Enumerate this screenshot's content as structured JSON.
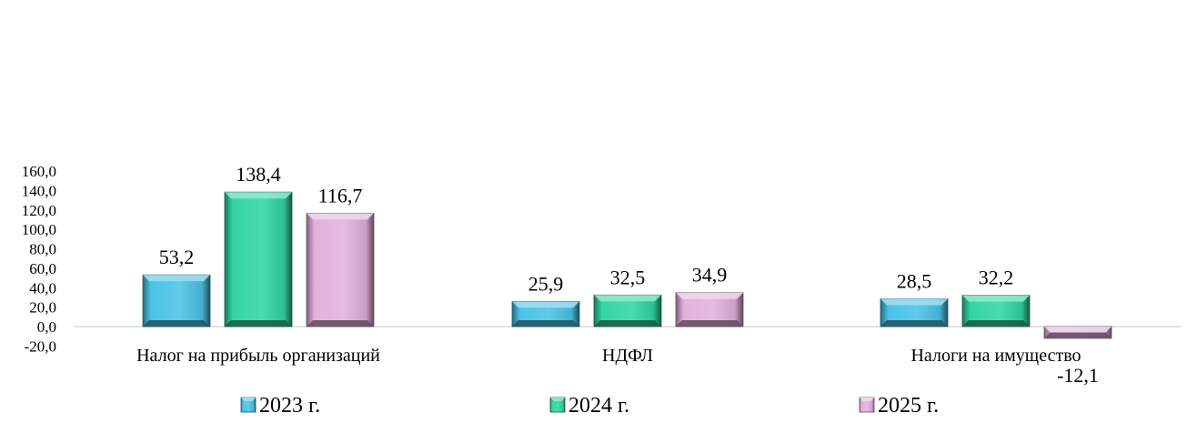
{
  "chart_data": {
    "type": "bar",
    "categories": [
      "Налог на прибыль организаций",
      "НДФЛ",
      "Налоги на имущество"
    ],
    "series": [
      {
        "name": "2023 г.",
        "values": [
          53.2,
          25.9,
          28.5
        ],
        "color": "#4BC3E6",
        "label_text": [
          "53,2",
          "25,9",
          "28,5"
        ]
      },
      {
        "name": "2024 г.",
        "values": [
          138.4,
          32.5,
          32.2
        ],
        "color": "#33D6A2",
        "label_text": [
          "138,4",
          "32,5",
          "32,2"
        ]
      },
      {
        "name": "2025 г.",
        "values": [
          116.7,
          34.9,
          -12.1
        ],
        "color": "#E3B2DC",
        "label_text": [
          "116,7",
          "34,9",
          "-12,1"
        ]
      }
    ],
    "y_ticks": [
      "160,0",
      "140,0",
      "120,0",
      "100,0",
      "80,0",
      "60,0",
      "40,0",
      "20,0",
      "0,0",
      "-20,0"
    ],
    "ylim": [
      -20,
      160
    ],
    "grid": false,
    "legend_position": "bottom"
  }
}
